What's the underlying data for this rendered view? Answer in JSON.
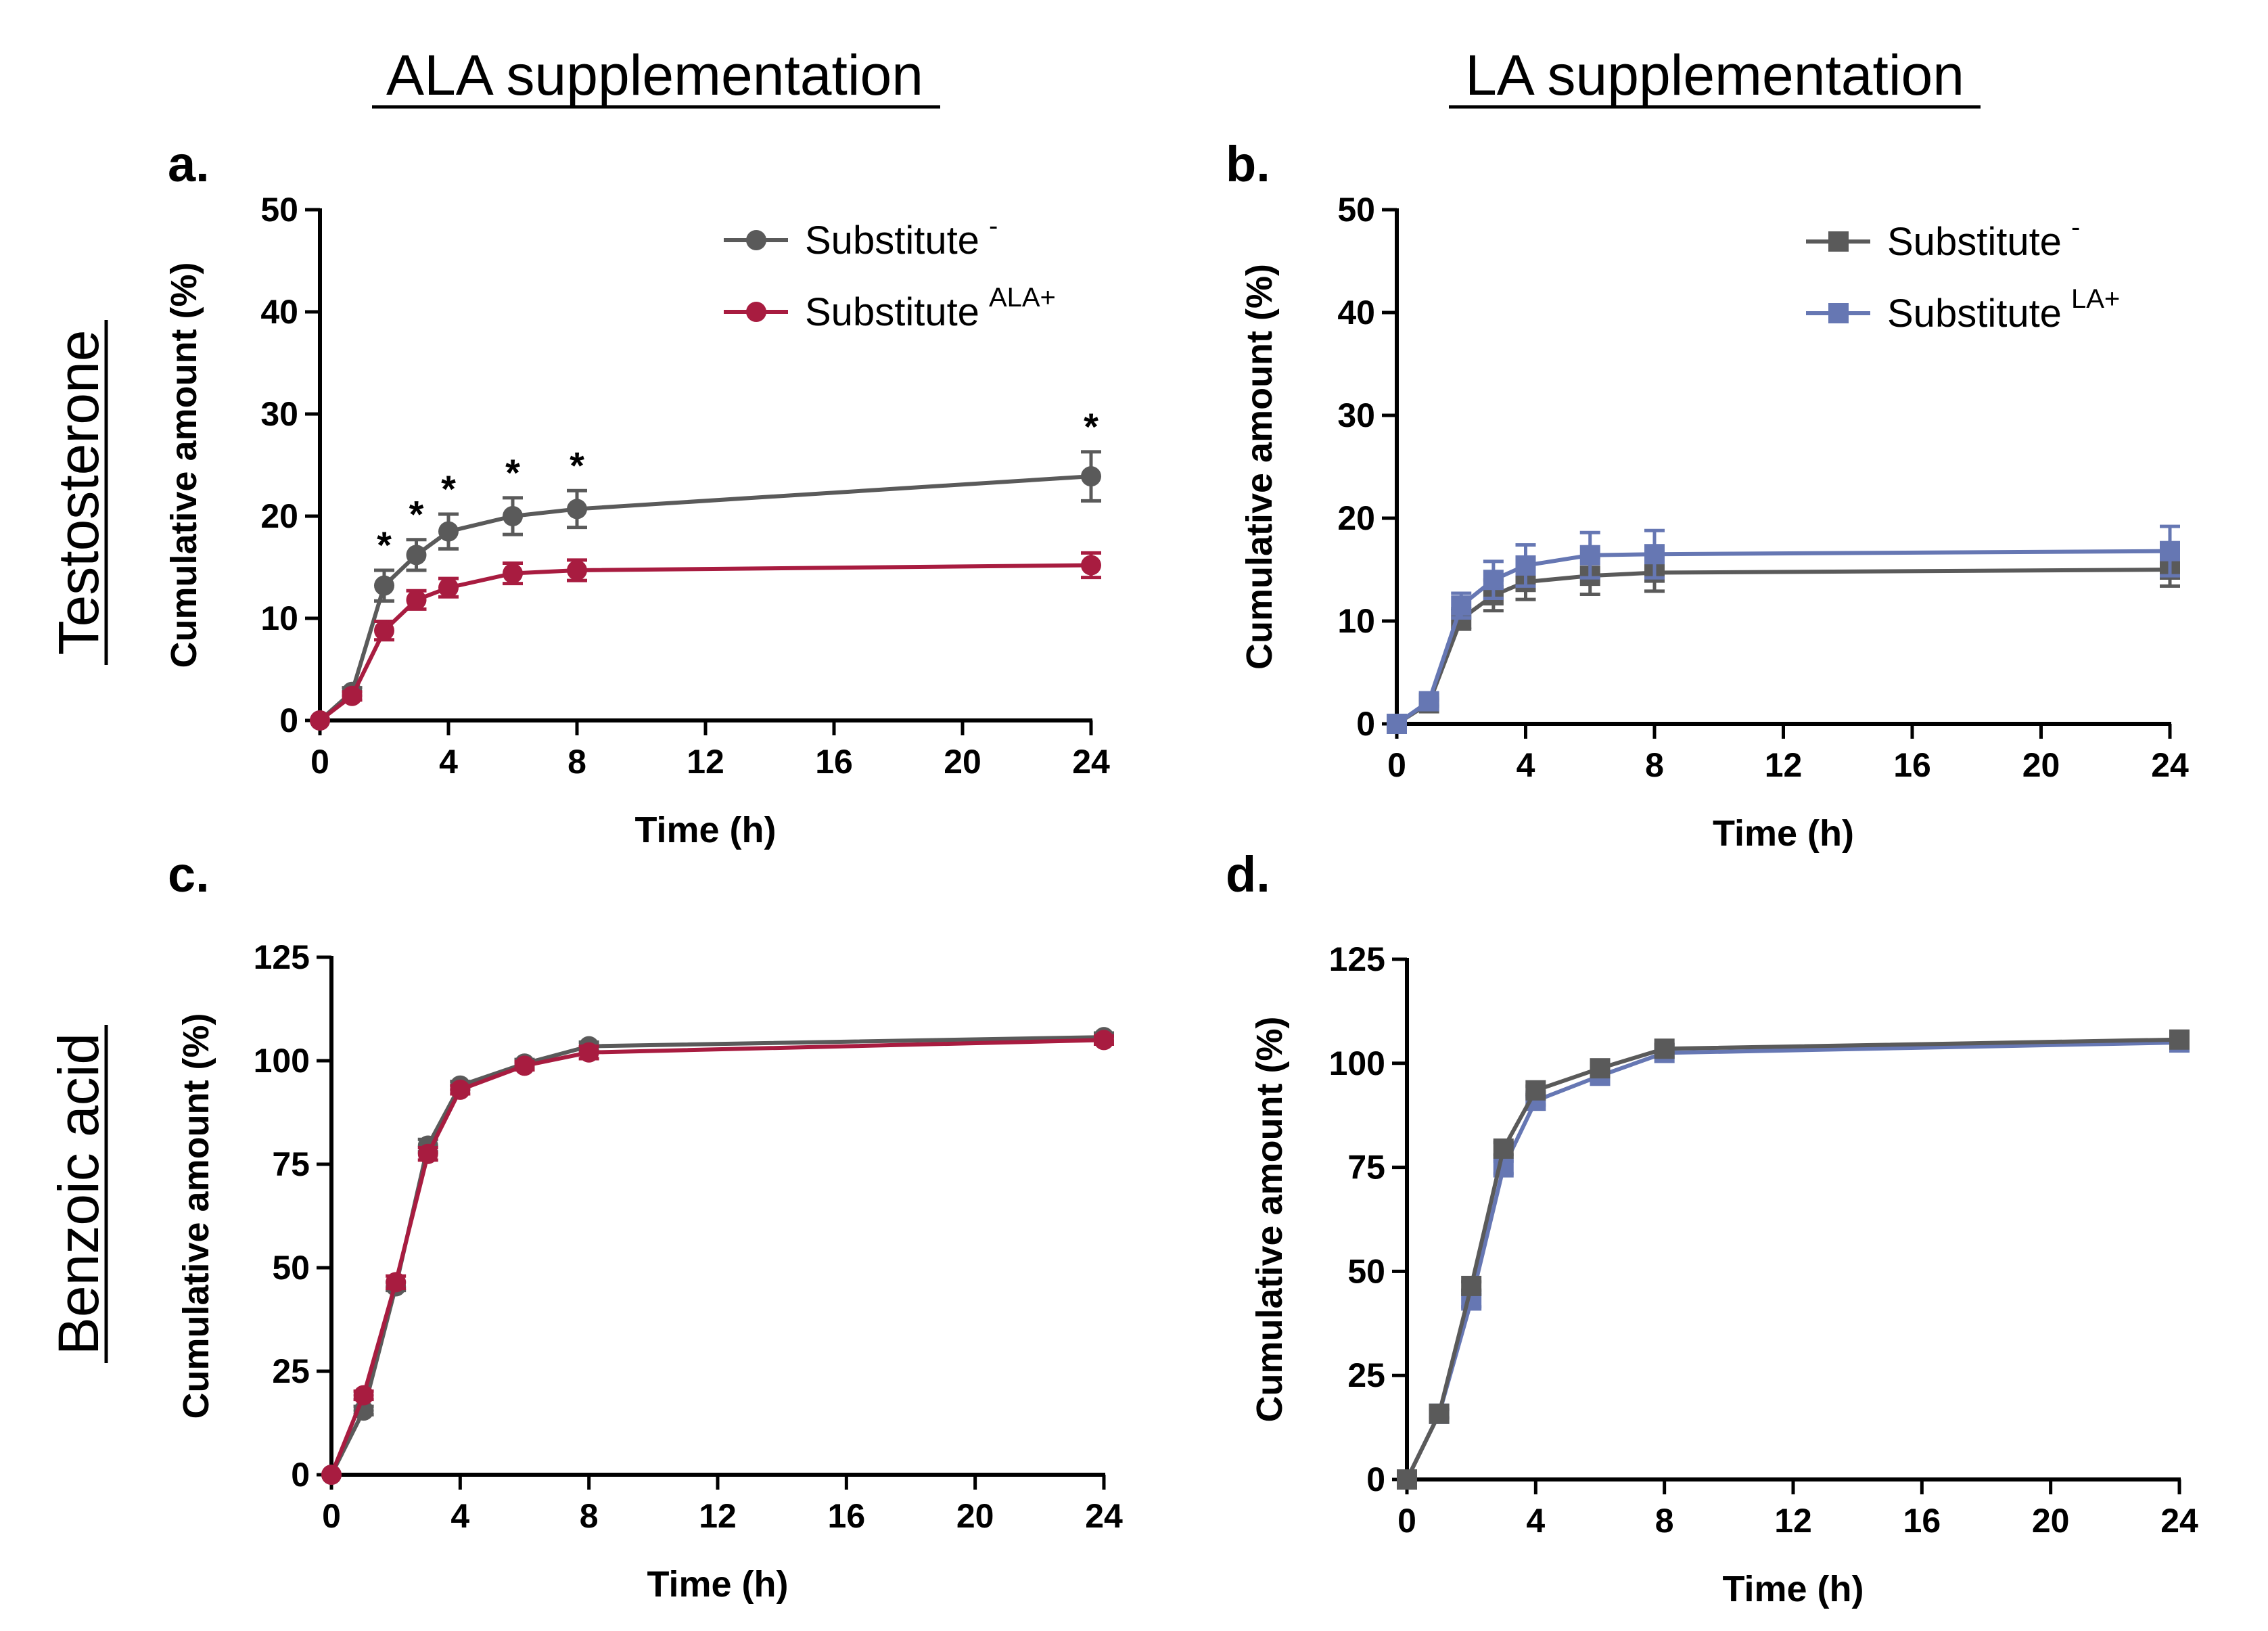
{
  "column_headers": [
    "ALA supplementation",
    "LA supplementation"
  ],
  "row_headers": [
    "Testosterone",
    "Benzoic acid"
  ],
  "colors": {
    "substitute_minus": "#5a5a5a",
    "substitute_ala": "#a81c40",
    "substitute_la": "#6677b3",
    "axis": "#000000"
  },
  "chart_data": [
    {
      "panel": "a.",
      "type": "line",
      "xlabel": "Time (h)",
      "ylabel": "Cumulative amount (%)",
      "xlim": [
        0,
        24
      ],
      "ylim": [
        0,
        50
      ],
      "xticks": [
        0,
        4,
        8,
        12,
        16,
        20,
        24
      ],
      "yticks": [
        0,
        10,
        20,
        30,
        40,
        50
      ],
      "legend_position": "top-right",
      "significance_marker": "*",
      "significant_x": [
        2,
        3,
        4,
        6,
        8,
        24
      ],
      "series": [
        {
          "name": "Substitute",
          "superscript": "-",
          "marker": "circle",
          "color": "#5a5a5a",
          "x": [
            0,
            1,
            2,
            3,
            4,
            6,
            8,
            24
          ],
          "values": [
            0,
            2.8,
            13.2,
            16.2,
            18.5,
            20.0,
            20.7,
            23.9
          ],
          "errors": [
            0,
            0.4,
            1.5,
            1.5,
            1.7,
            1.8,
            1.8,
            2.4
          ]
        },
        {
          "name": "Substitute",
          "superscript": "ALA+",
          "marker": "circle",
          "color": "#a81c40",
          "x": [
            0,
            1,
            2,
            3,
            4,
            6,
            8,
            24
          ],
          "values": [
            0,
            2.4,
            8.8,
            11.8,
            13.0,
            14.4,
            14.7,
            15.2
          ],
          "errors": [
            0,
            0.4,
            0.9,
            0.9,
            0.9,
            1.0,
            1.0,
            1.2
          ]
        }
      ]
    },
    {
      "panel": "b.",
      "type": "line",
      "xlabel": "Time (h)",
      "ylabel": "Cumulative amount (%)",
      "xlim": [
        0,
        24
      ],
      "ylim": [
        0,
        50
      ],
      "xticks": [
        0,
        4,
        8,
        12,
        16,
        20,
        24
      ],
      "yticks": [
        0,
        10,
        20,
        30,
        40,
        50
      ],
      "legend_position": "top-right",
      "series": [
        {
          "name": "Substitute",
          "superscript": "-",
          "marker": "square",
          "color": "#5a5a5a",
          "x": [
            0,
            1,
            2,
            3,
            4,
            6,
            8,
            24
          ],
          "values": [
            0,
            2.0,
            10.2,
            12.5,
            13.8,
            14.4,
            14.7,
            15.0
          ],
          "errors": [
            0,
            0.3,
            1.0,
            1.5,
            1.7,
            1.8,
            1.8,
            1.6
          ]
        },
        {
          "name": "Substitute",
          "superscript": "LA+",
          "marker": "square",
          "color": "#6677b3",
          "x": [
            0,
            1,
            2,
            3,
            4,
            6,
            8,
            24
          ],
          "values": [
            0,
            2.2,
            11.5,
            14.0,
            15.4,
            16.4,
            16.5,
            16.8
          ],
          "errors": [
            0,
            0.3,
            1.2,
            1.8,
            2.0,
            2.2,
            2.3,
            2.4
          ]
        }
      ]
    },
    {
      "panel": "c.",
      "type": "line",
      "xlabel": "Time (h)",
      "ylabel": "Cumulative amount (%)",
      "xlim": [
        0,
        24
      ],
      "ylim": [
        0,
        125
      ],
      "xticks": [
        0,
        4,
        8,
        12,
        16,
        20,
        24
      ],
      "yticks": [
        0,
        25,
        50,
        75,
        100,
        125
      ],
      "series": [
        {
          "name": "Substitute",
          "superscript": "-",
          "marker": "circle",
          "color": "#5a5a5a",
          "x": [
            0,
            1,
            2,
            3,
            4,
            6,
            8,
            24
          ],
          "values": [
            0,
            15.5,
            45.5,
            79.5,
            94.0,
            99.3,
            103.5,
            105.7
          ],
          "errors": [
            0,
            1,
            1,
            1.5,
            1,
            1,
            1,
            1
          ]
        },
        {
          "name": "Substitute",
          "superscript": "ALA+",
          "marker": "circle",
          "color": "#a81c40",
          "x": [
            0,
            1,
            2,
            3,
            4,
            6,
            8,
            24
          ],
          "values": [
            0,
            19.2,
            46.5,
            77.5,
            93.0,
            98.8,
            102.0,
            105.0
          ],
          "errors": [
            0,
            1,
            1.5,
            1.5,
            1,
            1,
            1.5,
            1
          ]
        }
      ]
    },
    {
      "panel": "d.",
      "type": "line",
      "xlabel": "Time (h)",
      "ylabel": "Cumulative amount (%)",
      "xlim": [
        0,
        24
      ],
      "ylim": [
        0,
        125
      ],
      "xticks": [
        0,
        4,
        8,
        12,
        16,
        20,
        24
      ],
      "yticks": [
        0,
        25,
        50,
        75,
        100,
        125
      ],
      "series": [
        {
          "name": "Substitute",
          "superscript": "LA+",
          "marker": "square",
          "color": "#6677b3",
          "x": [
            0,
            1,
            2,
            3,
            4,
            6,
            8,
            24
          ],
          "values": [
            0,
            15.8,
            43.0,
            75.0,
            91.0,
            97.0,
            102.5,
            105.0
          ],
          "errors": [
            0,
            1,
            1.5,
            1.5,
            1,
            1,
            1,
            1
          ]
        },
        {
          "name": "Substitute",
          "superscript": "-",
          "marker": "square",
          "color": "#5a5a5a",
          "x": [
            0,
            1,
            2,
            3,
            4,
            6,
            8,
            24
          ],
          "values": [
            0,
            15.8,
            46.5,
            79.5,
            93.5,
            98.8,
            103.5,
            105.7
          ],
          "errors": [
            0,
            1,
            1,
            1.5,
            1,
            1,
            1,
            1
          ]
        }
      ]
    }
  ]
}
